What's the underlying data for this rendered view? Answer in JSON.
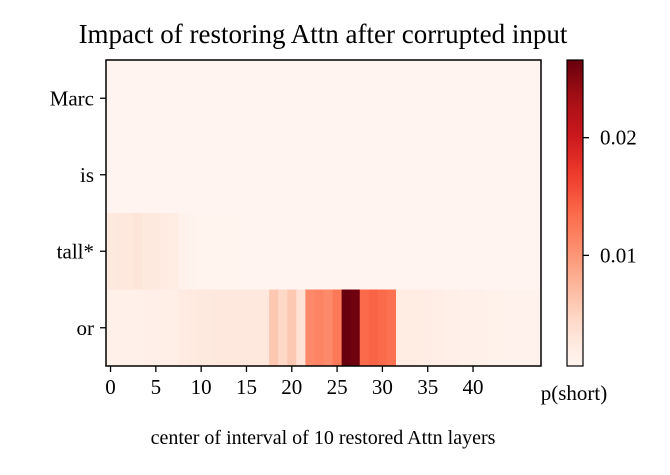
{
  "chart_data": {
    "type": "heatmap",
    "title": "Impact of restoring Attn after corrupted input",
    "xlabel": "center of interval of 10 restored Attn layers",
    "rows": [
      "Marc",
      "is",
      "tall*",
      "or"
    ],
    "x_ticks": [
      0,
      5,
      10,
      15,
      20,
      25,
      30,
      35,
      40
    ],
    "n_layers": 48,
    "colorbar": {
      "label": "p(short)",
      "ticks": [
        0.01,
        0.02
      ],
      "tick_labels": [
        "0.01",
        "0.02"
      ],
      "vmin": 0.0006,
      "vmax": 0.0266,
      "colormap": "Reds"
    },
    "values": [
      [
        0.0007,
        0.0007,
        0.0007,
        0.0007,
        0.0007,
        0.0007,
        0.0007,
        0.0007,
        0.0007,
        0.0007,
        0.0007,
        0.0007,
        0.0007,
        0.0007,
        0.0007,
        0.0007,
        0.0007,
        0.0007,
        0.0007,
        0.0007,
        0.0007,
        0.0007,
        0.0007,
        0.0007,
        0.0007,
        0.0007,
        0.0007,
        0.0007,
        0.0007,
        0.0007,
        0.0007,
        0.0007,
        0.0007,
        0.0007,
        0.0007,
        0.0007,
        0.0007,
        0.0007,
        0.0007,
        0.0007,
        0.0007,
        0.0007,
        0.0007,
        0.0007,
        0.0007,
        0.0007,
        0.0007,
        0.0007
      ],
      [
        0.0007,
        0.0007,
        0.0007,
        0.0007,
        0.0007,
        0.0007,
        0.0007,
        0.0007,
        0.0007,
        0.0007,
        0.0007,
        0.0007,
        0.0007,
        0.0007,
        0.0007,
        0.0007,
        0.0007,
        0.0007,
        0.0007,
        0.0007,
        0.0007,
        0.0007,
        0.0007,
        0.0007,
        0.0007,
        0.0007,
        0.0007,
        0.0007,
        0.0007,
        0.0007,
        0.0007,
        0.0007,
        0.0007,
        0.0007,
        0.0007,
        0.0007,
        0.0007,
        0.0007,
        0.0007,
        0.0007,
        0.0007,
        0.0007,
        0.0007,
        0.0007,
        0.0007,
        0.0007,
        0.0007,
        0.0007
      ],
      [
        0.0025,
        0.0028,
        0.0026,
        0.003,
        0.0025,
        0.0024,
        0.0022,
        0.002,
        0.001,
        0.0009,
        0.0008,
        0.0008,
        0.0008,
        0.0008,
        0.0008,
        0.0007,
        0.0007,
        0.0007,
        0.0007,
        0.0007,
        0.0007,
        0.0007,
        0.0007,
        0.0007,
        0.0007,
        0.0007,
        0.0007,
        0.0007,
        0.0007,
        0.0007,
        0.0007,
        0.0007,
        0.0007,
        0.0007,
        0.0007,
        0.0007,
        0.0007,
        0.0007,
        0.0007,
        0.0007,
        0.0007,
        0.0007,
        0.0007,
        0.0007,
        0.0007,
        0.0007,
        0.0007,
        0.0007
      ],
      [
        0.0012,
        0.0012,
        0.0013,
        0.0014,
        0.0015,
        0.0015,
        0.0016,
        0.0016,
        0.0022,
        0.0023,
        0.0024,
        0.0025,
        0.0026,
        0.0026,
        0.0027,
        0.0027,
        0.0027,
        0.0027,
        0.006,
        0.0045,
        0.006,
        0.0035,
        0.011,
        0.0115,
        0.011,
        0.0125,
        0.0265,
        0.0262,
        0.0135,
        0.014,
        0.0135,
        0.013,
        0.002,
        0.002,
        0.0019,
        0.0018,
        0.0017,
        0.0016,
        0.0015,
        0.0014,
        0.0013,
        0.0012,
        0.0011,
        0.0011,
        0.001,
        0.001,
        0.001,
        0.001
      ]
    ]
  }
}
